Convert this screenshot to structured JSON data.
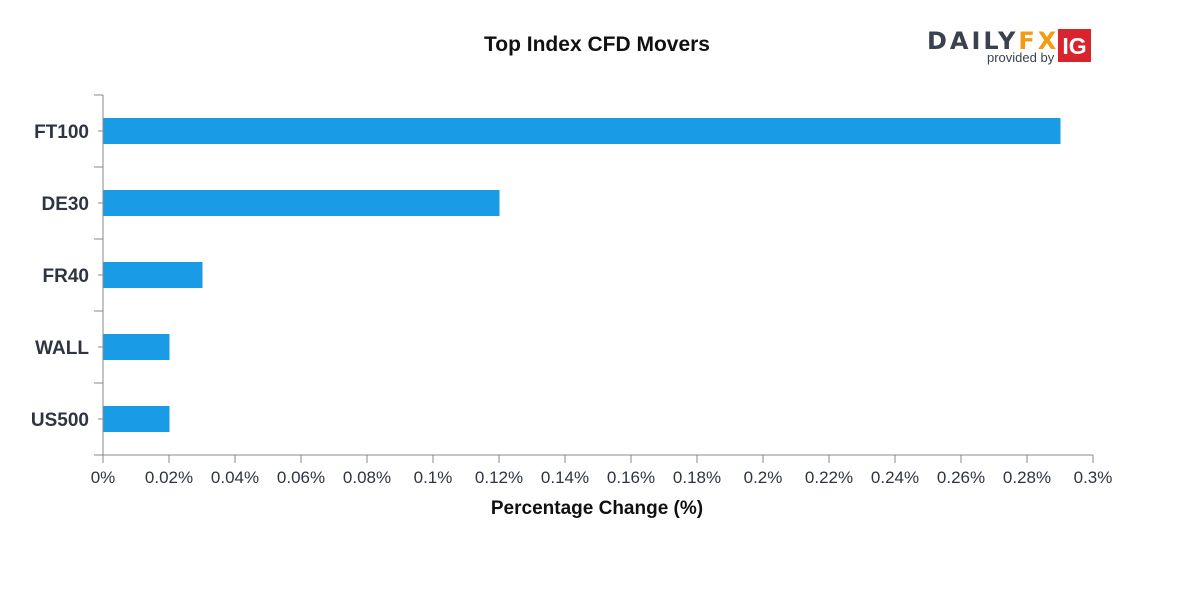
{
  "chart_data": {
    "type": "bar",
    "orientation": "horizontal",
    "title": "Top Index CFD Movers",
    "xlabel": "Percentage Change (%)",
    "ylabel": "",
    "categories": [
      "FT100",
      "DE30",
      "FR40",
      "WALL",
      "US500"
    ],
    "values": [
      0.29,
      0.12,
      0.03,
      0.02,
      0.02
    ],
    "xlim": [
      0,
      0.3
    ],
    "xticks": [
      0,
      0.02,
      0.04,
      0.06,
      0.08,
      0.1,
      0.12,
      0.14,
      0.16,
      0.18,
      0.2,
      0.22,
      0.24,
      0.26,
      0.28,
      0.3
    ],
    "xtick_labels": [
      "0%",
      "0.02%",
      "0.04%",
      "0.06%",
      "0.08%",
      "0.1%",
      "0.12%",
      "0.14%",
      "0.16%",
      "0.18%",
      "0.2%",
      "0.22%",
      "0.24%",
      "0.26%",
      "0.28%",
      "0.3%"
    ],
    "grid": false,
    "bar_color": "#1a9be6",
    "axis_color": "#888888"
  },
  "branding": {
    "daily": "DAILY",
    "fx": "FX",
    "provided_by": "provided by",
    "ig": "IG",
    "daily_color": "#3a4250",
    "fx_color": "#f39c12",
    "ig_bg": "#d9232d",
    "ig_color": "#ffffff"
  }
}
